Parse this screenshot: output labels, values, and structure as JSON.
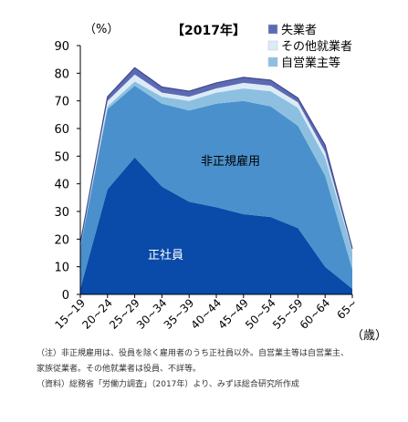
{
  "chart_data": {
    "type": "area",
    "title": "【2017年】",
    "ylabel": "（%）",
    "xlabel": "（歳）",
    "ylim": [
      0,
      90
    ],
    "yticks": [
      0,
      10,
      20,
      30,
      40,
      50,
      60,
      70,
      80,
      90
    ],
    "categories": [
      "15~19",
      "20~24",
      "25~29",
      "30~34",
      "35~39",
      "40~44",
      "45~49",
      "50~54",
      "55~59",
      "60~64",
      "65~"
    ],
    "series": [
      {
        "name": "正社員",
        "values": [
          2,
          38,
          49.5,
          39,
          33.5,
          31.5,
          29,
          28,
          24,
          10,
          2
        ],
        "color": "#0a4aa8"
      },
      {
        "name": "非正規雇用",
        "values": [
          15,
          29,
          26,
          30,
          33,
          37.5,
          41,
          40,
          37,
          33,
          7
        ],
        "color": "#4a90cc"
      },
      {
        "name": "自営業主等",
        "values": [
          0.8,
          1,
          1.5,
          2.5,
          3.5,
          4,
          4.5,
          5.5,
          6.5,
          6.5,
          6.5
        ],
        "color": "#8dc0e0"
      },
      {
        "name": "その他就業者",
        "values": [
          0.3,
          2,
          2.5,
          1.5,
          1.5,
          1.5,
          2,
          2,
          2,
          2,
          0.5
        ],
        "color": "#ddebf6"
      },
      {
        "name": "失業者",
        "values": [
          0.4,
          1.5,
          2.5,
          2,
          2,
          2,
          2,
          2,
          1.5,
          2.5,
          0.5
        ],
        "color": "#5c6ab4"
      }
    ],
    "legend": [
      "失業者",
      "その他就業者",
      "自営業主等"
    ],
    "legend_position": "top-right",
    "inner_labels": [
      "非正規雇用",
      "正社員"
    ],
    "grid": false
  },
  "notes": [
    "（注）非正規雇用は、役員を除く雇用者のうち正社員以外。自営業主等は自営業主、",
    "家族従業者。その他就業者は役員、不詳等。",
    "（資料）総務省「労働力調査」（2017年）より、みずほ総合研究所作成"
  ]
}
